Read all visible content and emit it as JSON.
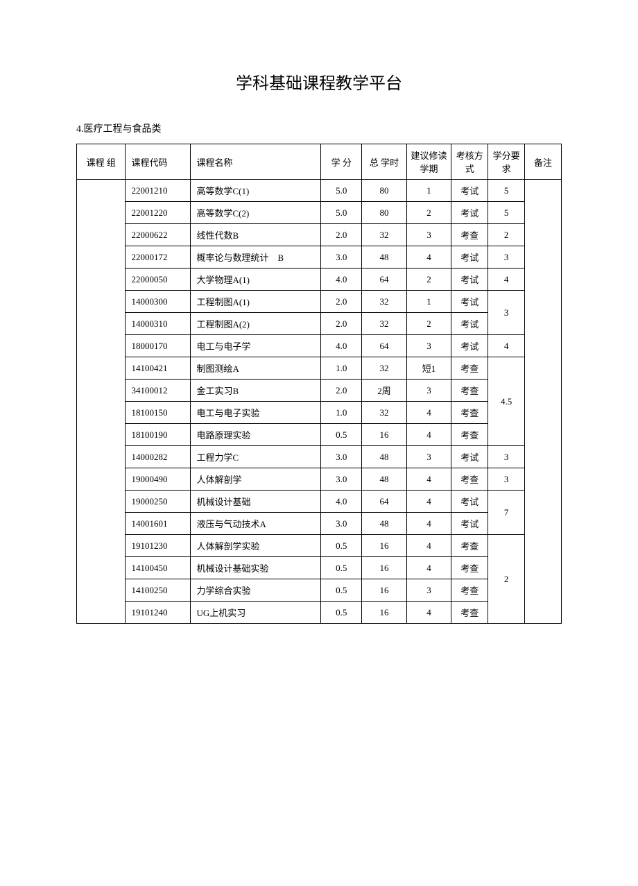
{
  "title": "学科基础课程教学平台",
  "section_label": "4.医疗工程与食品类",
  "headers": {
    "group": "课程 组",
    "code": "课程代码",
    "name": "课程名称",
    "credit": "学 分",
    "hours": "总 学时",
    "term": "建议修读学期",
    "method": "考核方式",
    "req": "学分要求",
    "note": "备注"
  },
  "rows": [
    {
      "code": "22001210",
      "name": "高等数学C(1)",
      "credit": "5.0",
      "hours": "80",
      "term": "1",
      "method": "考试",
      "req": "5",
      "req_span": 1
    },
    {
      "code": "22001220",
      "name": "高等数学C(2)",
      "credit": "5.0",
      "hours": "80",
      "term": "2",
      "method": "考试",
      "req": "5",
      "req_span": 1
    },
    {
      "code": "22000622",
      "name": "线性代数B",
      "credit": "2.0",
      "hours": "32",
      "term": "3",
      "method": "考查",
      "req": "2",
      "req_span": 1
    },
    {
      "code": "22000172",
      "name": "概率论与数理统计　B",
      "credit": "3.0",
      "hours": "48",
      "term": "4",
      "method": "考试",
      "req": "3",
      "req_span": 1
    },
    {
      "code": "22000050",
      "name": "大学物理A(1)",
      "credit": "4.0",
      "hours": "64",
      "term": "2",
      "method": "考试",
      "req": "4",
      "req_span": 1
    },
    {
      "code": "14000300",
      "name": "工程制图A(1)",
      "credit": "2.0",
      "hours": "32",
      "term": "1",
      "method": "考试",
      "req": "3",
      "req_span": 2
    },
    {
      "code": "14000310",
      "name": "工程制图A(2)",
      "credit": "2.0",
      "hours": "32",
      "term": "2",
      "method": "考试"
    },
    {
      "code": "18000170",
      "name": "电工与电子学",
      "credit": "4.0",
      "hours": "64",
      "term": "3",
      "method": "考试",
      "req": "4",
      "req_span": 1
    },
    {
      "code": "14100421",
      "name": "制图测绘A",
      "credit": "1.0",
      "hours": "32",
      "term": "短1",
      "method": "考查",
      "req": "4.5",
      "req_span": 4
    },
    {
      "code": "34100012",
      "name": "金工实习B",
      "credit": "2.0",
      "hours": "2周",
      "term": "3",
      "method": "考查"
    },
    {
      "code": "18100150",
      "name": "电工与电子实验",
      "credit": "1.0",
      "hours": "32",
      "term": "4",
      "method": "考查"
    },
    {
      "code": "18100190",
      "name": "电路原理实验",
      "credit": "0.5",
      "hours": "16",
      "term": "4",
      "method": "考查"
    },
    {
      "code": "14000282",
      "name": "工程力学C",
      "credit": "3.0",
      "hours": "48",
      "term": "3",
      "method": "考试",
      "req": "3",
      "req_span": 1
    },
    {
      "code": "19000490",
      "name": "人体解剖学",
      "credit": "3.0",
      "hours": "48",
      "term": "4",
      "method": "考查",
      "req": "3",
      "req_span": 1
    },
    {
      "code": "19000250",
      "name": "机械设计基础",
      "credit": "4.0",
      "hours": "64",
      "term": "4",
      "method": "考试",
      "req": "7",
      "req_span": 2
    },
    {
      "code": "14001601",
      "name": "液压与气动技术A",
      "credit": "3.0",
      "hours": "48",
      "term": "4",
      "method": "考试"
    },
    {
      "code": "19101230",
      "name": "人体解剖学实验",
      "credit": "0.5",
      "hours": "16",
      "term": "4",
      "method": "考查",
      "req": "2",
      "req_span": 4
    },
    {
      "code": "14100450",
      "name": "机械设计基础实验",
      "credit": "0.5",
      "hours": "16",
      "term": "4",
      "method": "考查"
    },
    {
      "code": "14100250",
      "name": "力学综合实验",
      "credit": "0.5",
      "hours": "16",
      "term": "3",
      "method": "考查"
    },
    {
      "code": "19101240",
      "name": "UG上机实习",
      "credit": "0.5",
      "hours": "16",
      "term": "4",
      "method": "考查"
    }
  ],
  "row_count": 20
}
